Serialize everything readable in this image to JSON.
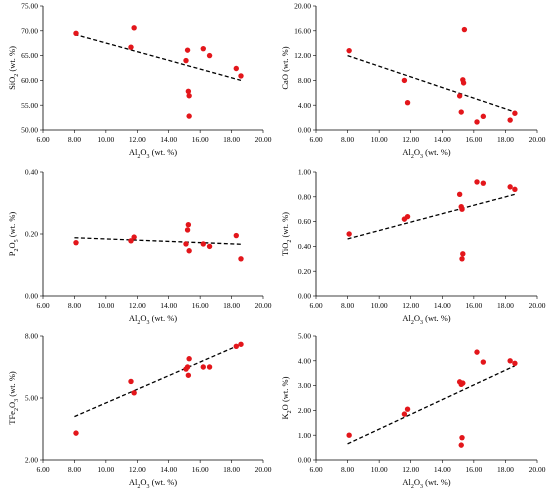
{
  "colors": {
    "point": "#e3161b",
    "axis": "#000000",
    "trend": "#000000"
  },
  "chart_data": [
    {
      "type": "scatter",
      "xlabel_parts": [
        "Al",
        "2",
        "O",
        "3",
        " (wt. %)"
      ],
      "ylabel_parts": [
        "SiO",
        "2",
        " (wt. %)"
      ],
      "xlim": [
        6,
        20
      ],
      "ylim": [
        50,
        75
      ],
      "x_ticks": [
        6,
        8,
        10,
        12,
        14,
        16,
        18,
        20
      ],
      "x_tick_labels": [
        "6.00",
        "8.00",
        "10.00",
        "12.00",
        "14.00",
        "16.00",
        "18.00",
        "20.00"
      ],
      "y_ticks": [
        50,
        55,
        60,
        65,
        70,
        75
      ],
      "y_tick_labels": [
        "50.00",
        "55.00",
        "60.00",
        "65.00",
        "70.00",
        "75.00"
      ],
      "grid": false,
      "points": [
        {
          "x": 8.1,
          "y": 69.5
        },
        {
          "x": 11.6,
          "y": 66.7
        },
        {
          "x": 11.8,
          "y": 70.6
        },
        {
          "x": 15.1,
          "y": 64.0
        },
        {
          "x": 15.2,
          "y": 66.1
        },
        {
          "x": 15.25,
          "y": 57.8
        },
        {
          "x": 15.3,
          "y": 56.9
        },
        {
          "x": 15.3,
          "y": 52.8
        },
        {
          "x": 16.2,
          "y": 66.4
        },
        {
          "x": 16.6,
          "y": 65.0
        },
        {
          "x": 18.3,
          "y": 62.4
        },
        {
          "x": 18.6,
          "y": 60.9
        }
      ],
      "trendline": {
        "x1": 8.0,
        "y1": 69.3,
        "x2": 18.6,
        "y2": 60.0
      }
    },
    {
      "type": "scatter",
      "xlabel_parts": [
        "Al",
        "2",
        "O",
        "3",
        " (wt. %)"
      ],
      "ylabel_parts": [
        "CaO (wt. %)"
      ],
      "xlim": [
        6,
        20
      ],
      "ylim": [
        0,
        20
      ],
      "x_ticks": [
        6,
        8,
        10,
        12,
        14,
        16,
        18,
        20
      ],
      "x_tick_labels": [
        "6.00",
        "8.00",
        "10.00",
        "12.00",
        "14.00",
        "16.00",
        "18.00",
        "20.00"
      ],
      "y_ticks": [
        0,
        4,
        8,
        12,
        16,
        20
      ],
      "y_tick_labels": [
        "0.00",
        "4.00",
        "8.00",
        "12.00",
        "16.00",
        "20.00"
      ],
      "grid": false,
      "points": [
        {
          "x": 8.1,
          "y": 12.8
        },
        {
          "x": 11.6,
          "y": 8.0
        },
        {
          "x": 11.8,
          "y": 4.4
        },
        {
          "x": 15.1,
          "y": 5.5
        },
        {
          "x": 15.2,
          "y": 2.9
        },
        {
          "x": 15.3,
          "y": 8.1
        },
        {
          "x": 15.35,
          "y": 7.6
        },
        {
          "x": 15.4,
          "y": 16.2
        },
        {
          "x": 16.2,
          "y": 1.3
        },
        {
          "x": 16.6,
          "y": 2.2
        },
        {
          "x": 18.3,
          "y": 1.6
        },
        {
          "x": 18.6,
          "y": 2.7
        }
      ],
      "trendline": {
        "x1": 8.0,
        "y1": 12.0,
        "x2": 18.6,
        "y2": 2.9
      }
    },
    {
      "type": "scatter",
      "xlabel_parts": [
        "Al",
        "2",
        "O",
        "3",
        " (wt. %)"
      ],
      "ylabel_parts": [
        "P",
        "2",
        "O",
        "5",
        " (wt. %)"
      ],
      "xlim": [
        6,
        20
      ],
      "ylim": [
        0,
        0.4
      ],
      "x_ticks": [
        6,
        8,
        10,
        12,
        14,
        16,
        18,
        20
      ],
      "x_tick_labels": [
        "6.00",
        "8.00",
        "10.00",
        "12.00",
        "14.00",
        "16.00",
        "18.00",
        "20.00"
      ],
      "y_ticks": [
        0,
        0.2,
        0.4
      ],
      "y_tick_labels": [
        "0.00",
        "0.20",
        "0.40"
      ],
      "grid": false,
      "points": [
        {
          "x": 8.1,
          "y": 0.172
        },
        {
          "x": 11.6,
          "y": 0.178
        },
        {
          "x": 11.8,
          "y": 0.19
        },
        {
          "x": 15.1,
          "y": 0.168
        },
        {
          "x": 15.2,
          "y": 0.213
        },
        {
          "x": 15.25,
          "y": 0.23
        },
        {
          "x": 15.3,
          "y": 0.146
        },
        {
          "x": 16.2,
          "y": 0.168
        },
        {
          "x": 16.6,
          "y": 0.16
        },
        {
          "x": 18.3,
          "y": 0.195
        },
        {
          "x": 18.6,
          "y": 0.12
        }
      ],
      "trendline": {
        "x1": 8.0,
        "y1": 0.188,
        "x2": 18.6,
        "y2": 0.167
      }
    },
    {
      "type": "scatter",
      "xlabel_parts": [
        "Al",
        "2",
        "O",
        "3",
        " (wt. %)"
      ],
      "ylabel_parts": [
        "TiO",
        "2",
        " (wt. %)"
      ],
      "xlim": [
        6,
        20
      ],
      "ylim": [
        0,
        1
      ],
      "x_ticks": [
        6,
        8,
        10,
        12,
        14,
        16,
        18,
        20
      ],
      "x_tick_labels": [
        "6.00",
        "8.00",
        "10.00",
        "12.00",
        "14.00",
        "16.00",
        "18.00",
        "20.00"
      ],
      "y_ticks": [
        0,
        0.2,
        0.4,
        0.6,
        0.8,
        1.0
      ],
      "y_tick_labels": [
        "0.00",
        "0.20",
        "0.40",
        "0.60",
        "0.80",
        "1.00"
      ],
      "grid": false,
      "points": [
        {
          "x": 8.1,
          "y": 0.5
        },
        {
          "x": 11.6,
          "y": 0.62
        },
        {
          "x": 11.8,
          "y": 0.64
        },
        {
          "x": 15.1,
          "y": 0.82
        },
        {
          "x": 15.2,
          "y": 0.72
        },
        {
          "x": 15.25,
          "y": 0.7
        },
        {
          "x": 15.3,
          "y": 0.34
        },
        {
          "x": 15.25,
          "y": 0.3
        },
        {
          "x": 16.2,
          "y": 0.92
        },
        {
          "x": 16.6,
          "y": 0.91
        },
        {
          "x": 18.3,
          "y": 0.88
        },
        {
          "x": 18.6,
          "y": 0.86
        }
      ],
      "trendline": {
        "x1": 8.0,
        "y1": 0.46,
        "x2": 18.6,
        "y2": 0.82
      }
    },
    {
      "type": "scatter",
      "xlabel_parts": [
        "Al",
        "2",
        "O",
        "3",
        " (wt. %)"
      ],
      "ylabel_parts": [
        "TFe",
        "2",
        "O",
        "3",
        " (wt. %)"
      ],
      "xlim": [
        6,
        20
      ],
      "ylim": [
        2,
        8
      ],
      "x_ticks": [
        6,
        8,
        10,
        12,
        14,
        16,
        18,
        20
      ],
      "x_tick_labels": [
        "6.00",
        "8.00",
        "10.00",
        "12.00",
        "14.00",
        "16.00",
        "18.00",
        "20.00"
      ],
      "y_ticks": [
        2,
        5,
        8
      ],
      "y_tick_labels": [
        "2.00",
        "5.00",
        "8.00"
      ],
      "grid": false,
      "points": [
        {
          "x": 8.1,
          "y": 3.3
        },
        {
          "x": 11.6,
          "y": 5.8
        },
        {
          "x": 11.8,
          "y": 5.25
        },
        {
          "x": 15.1,
          "y": 6.4
        },
        {
          "x": 15.2,
          "y": 6.5
        },
        {
          "x": 15.25,
          "y": 6.1
        },
        {
          "x": 15.3,
          "y": 6.9
        },
        {
          "x": 16.2,
          "y": 6.5
        },
        {
          "x": 16.6,
          "y": 6.5
        },
        {
          "x": 18.3,
          "y": 7.5
        },
        {
          "x": 18.6,
          "y": 7.6
        }
      ],
      "trendline": {
        "x1": 8.0,
        "y1": 4.1,
        "x2": 18.6,
        "y2": 7.6
      }
    },
    {
      "type": "scatter",
      "xlabel_parts": [
        "Al",
        "2",
        "O",
        "3",
        " (wt. %)"
      ],
      "ylabel_parts": [
        "K",
        "2",
        "O (wt. %)"
      ],
      "xlim": [
        6,
        20
      ],
      "ylim": [
        0,
        5
      ],
      "x_ticks": [
        6,
        8,
        10,
        12,
        14,
        16,
        18,
        20
      ],
      "x_tick_labels": [
        "6.00",
        "8.00",
        "10.00",
        "12.00",
        "14.00",
        "16.00",
        "18.00",
        "20.00"
      ],
      "y_ticks": [
        0,
        1,
        2,
        3,
        4,
        5
      ],
      "y_tick_labels": [
        "0.00",
        "1.00",
        "2.00",
        "3.00",
        "4.00",
        "5.00"
      ],
      "grid": false,
      "points": [
        {
          "x": 8.1,
          "y": 1.0
        },
        {
          "x": 11.6,
          "y": 1.85
        },
        {
          "x": 11.8,
          "y": 2.05
        },
        {
          "x": 15.1,
          "y": 3.15
        },
        {
          "x": 15.2,
          "y": 3.05
        },
        {
          "x": 15.3,
          "y": 3.1
        },
        {
          "x": 15.25,
          "y": 0.9
        },
        {
          "x": 15.2,
          "y": 0.6
        },
        {
          "x": 16.2,
          "y": 4.35
        },
        {
          "x": 16.6,
          "y": 3.95
        },
        {
          "x": 18.3,
          "y": 4.0
        },
        {
          "x": 18.6,
          "y": 3.9
        }
      ],
      "trendline": {
        "x1": 8.0,
        "y1": 0.65,
        "x2": 18.6,
        "y2": 3.8
      }
    }
  ]
}
